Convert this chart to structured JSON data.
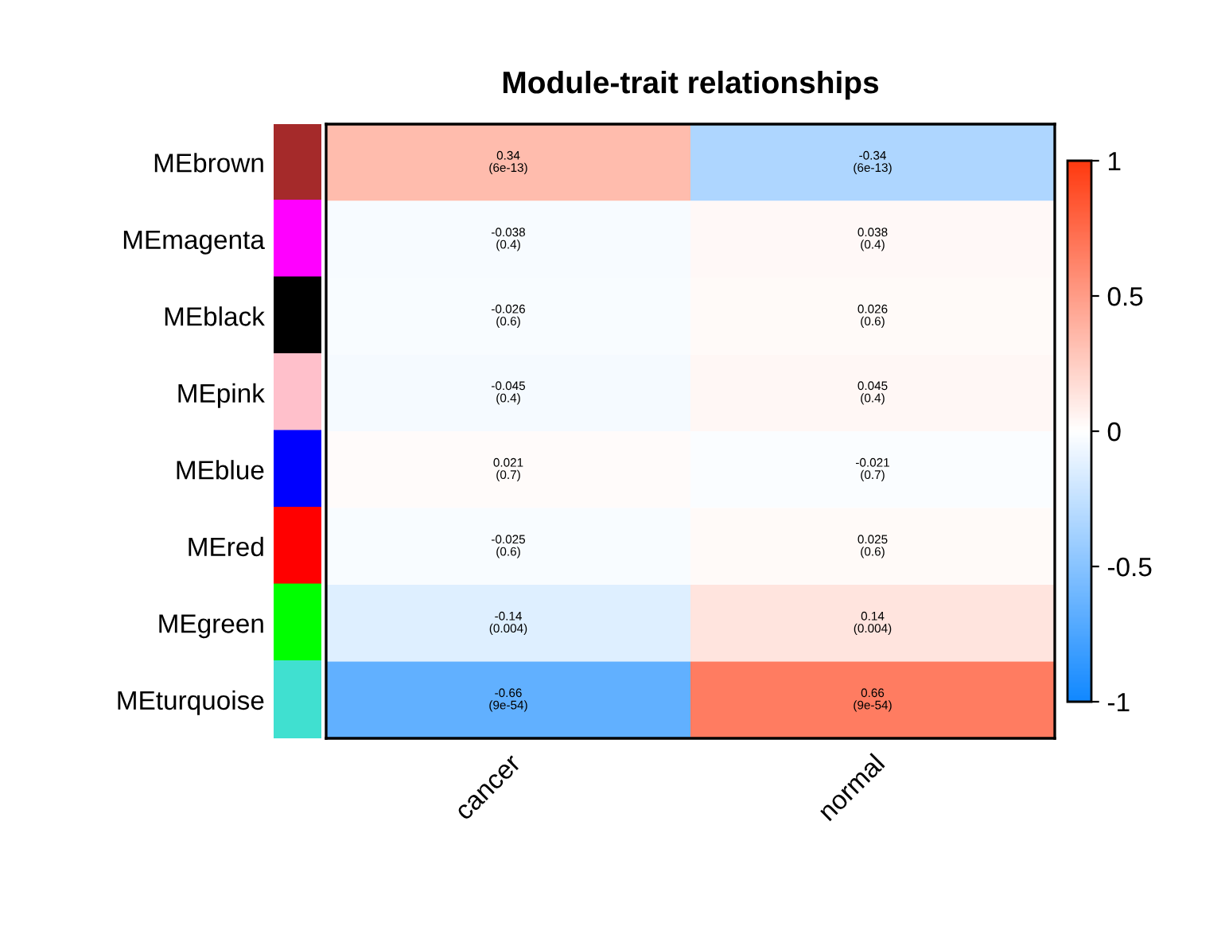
{
  "chart_data": {
    "type": "heatmap",
    "title": "Module-trait relationships",
    "categories": [
      "cancer",
      "normal"
    ],
    "y_categories": [
      "MEbrown",
      "MEmagenta",
      "MEblack",
      "MEpink",
      "MEblue",
      "MEred",
      "MEgreen",
      "MEturquoise"
    ],
    "cells": [
      [
        0.34,
        -0.34
      ],
      [
        -0.038,
        0.038
      ],
      [
        -0.026,
        0.026
      ],
      [
        -0.045,
        0.045
      ],
      [
        0.021,
        -0.021
      ],
      [
        -0.025,
        0.025
      ],
      [
        -0.14,
        0.14
      ],
      [
        -0.66,
        0.66
      ]
    ],
    "cell_labels": [
      [
        "0.34\n(6e-13)",
        "-0.34\n(6e-13)"
      ],
      [
        "-0.038\n(0.4)",
        "0.038\n(0.4)"
      ],
      [
        "-0.026\n(0.6)",
        "0.026\n(0.6)"
      ],
      [
        "-0.045\n(0.4)",
        "0.045\n(0.4)"
      ],
      [
        "0.021\n(0.7)",
        "-0.021\n(0.7)"
      ],
      [
        "-0.025\n(0.6)",
        "0.025\n(0.6)"
      ],
      [
        "-0.14\n(0.004)",
        "0.14\n(0.004)"
      ],
      [
        "-0.66\n(9e-54)",
        "0.66\n(9e-54)"
      ]
    ],
    "clim": [
      -1,
      1
    ],
    "cticks": [
      -1,
      -0.5,
      0,
      0.5,
      1
    ]
  }
}
